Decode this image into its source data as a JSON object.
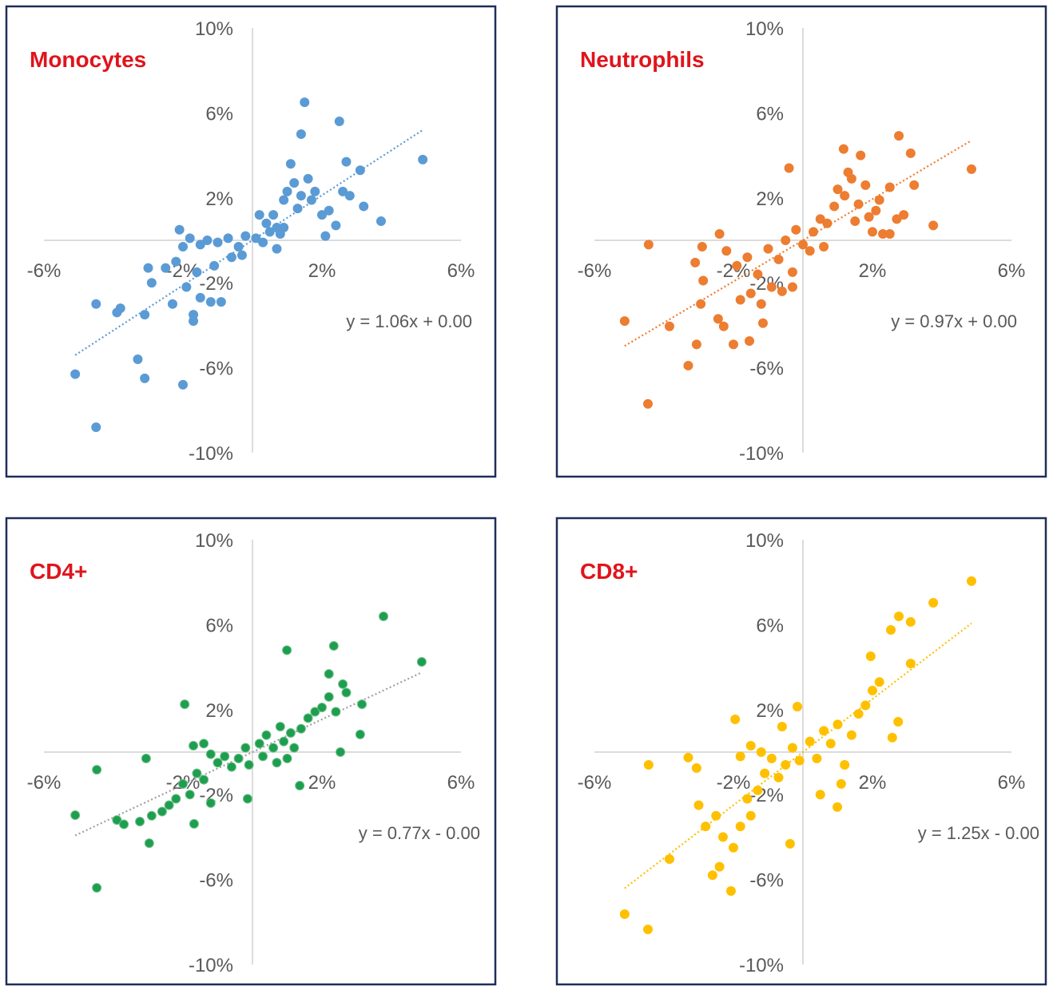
{
  "chart_data": [
    {
      "type": "scatter",
      "title": "Monocytes",
      "color": "#5b9bd5",
      "edge": "#5b9bd5",
      "xlim": [
        -6,
        6
      ],
      "ylim": [
        -10,
        10
      ],
      "xticks": [
        {
          "value": -6,
          "label": "-6%"
        },
        {
          "value": -2,
          "label": "-2%"
        },
        {
          "value": 2,
          "label": "2%"
        },
        {
          "value": 6,
          "label": "6%"
        }
      ],
      "yticks": [
        {
          "value": 10,
          "label": "10%"
        },
        {
          "value": 6,
          "label": "6%"
        },
        {
          "value": 2,
          "label": "2%"
        },
        {
          "value": -2,
          "label": "-2%"
        },
        {
          "value": -6,
          "label": "-6%"
        },
        {
          "value": -10,
          "label": "-10%"
        }
      ],
      "x": [
        4.9,
        1.5,
        2.5,
        1.4,
        2.7,
        3.1,
        3.7,
        3.2,
        -4.5,
        -5.1,
        -4.5,
        -3.3,
        -3.1,
        -2.0,
        -3.9,
        -3.8,
        -3.1,
        -2.9,
        -3.0,
        -2.3,
        -1.7,
        -1.7,
        -1.5,
        -1.2,
        -0.9,
        -2.1,
        -2.5,
        -2.0,
        -1.8,
        -1.5,
        -1.3,
        -1.0,
        -0.7,
        -0.4,
        -0.3,
        -0.2,
        0.1,
        -2.2,
        -1.6,
        -1.1,
        -0.6,
        -1.9,
        0.6,
        0.7,
        0.8,
        0.9,
        1.0,
        1.1,
        1.2,
        1.4,
        1.6,
        1.7,
        2.0,
        2.2,
        2.4,
        2.1,
        1.8,
        2.6,
        2.8,
        0.2,
        0.4,
        0.5,
        0.7,
        0.9,
        1.3,
        0.3
      ],
      "values": [
        3.8,
        6.5,
        5.6,
        5.0,
        3.7,
        3.3,
        0.9,
        1.6,
        -3.0,
        -6.3,
        -8.8,
        -5.6,
        -6.5,
        -6.8,
        -3.4,
        -3.2,
        -3.5,
        -2.0,
        -1.3,
        -3.0,
        -3.8,
        -3.5,
        -2.7,
        -2.9,
        -2.9,
        0.5,
        -1.3,
        -0.3,
        0.1,
        -0.2,
        0.0,
        -0.1,
        0.1,
        -0.3,
        -0.7,
        0.2,
        0.1,
        -1.0,
        -1.5,
        -1.2,
        -0.8,
        -2.2,
        1.2,
        0.6,
        0.3,
        1.9,
        2.3,
        3.6,
        2.7,
        2.1,
        2.9,
        1.9,
        1.2,
        1.4,
        0.7,
        0.2,
        2.3,
        2.3,
        2.1,
        1.2,
        0.8,
        0.4,
        -0.4,
        0.6,
        1.5,
        -0.1
      ],
      "trendline": {
        "label": "y = 1.06x + 0.00",
        "slope": 1.06,
        "intercept": 0.0,
        "color": "#5b9bd5"
      }
    },
    {
      "type": "scatter",
      "title": "Neutrophils",
      "color": "#ed7d31",
      "edge": "#ed7d31",
      "xlim": [
        -6,
        6
      ],
      "ylim": [
        -10,
        10
      ],
      "xticks": [
        {
          "value": -6,
          "label": "-6%"
        },
        {
          "value": -2,
          "label": "-2%"
        },
        {
          "value": 2,
          "label": "2%"
        },
        {
          "value": 6,
          "label": "6%"
        }
      ],
      "yticks": [
        {
          "value": 10,
          "label": "10%"
        },
        {
          "value": 6,
          "label": "6%"
        },
        {
          "value": 2,
          "label": "2%"
        },
        {
          "value": -2,
          "label": "-2%"
        },
        {
          "value": -6,
          "label": "-6%"
        },
        {
          "value": -10,
          "label": "-10%"
        }
      ],
      "x": [
        4.85,
        2.76,
        3.1,
        1.17,
        1.66,
        -0.4,
        3.75,
        -5.13,
        -4.44,
        -4.46,
        -3.3,
        -3.06,
        -3.84,
        -2.0,
        -1.54,
        -2.44,
        -2.28,
        -1.15,
        -2.94,
        -2.87,
        -3.1,
        -2.9,
        -2.4,
        -2.2,
        -1.9,
        -1.6,
        -1.3,
        -1.0,
        -0.7,
        -0.5,
        -0.3,
        -0.2,
        0.0,
        -1.5,
        -1.2,
        -0.9,
        -1.8,
        -0.3,
        -0.6,
        0.3,
        0.5,
        0.7,
        0.9,
        1.0,
        1.2,
        1.3,
        1.4,
        1.6,
        1.8,
        1.9,
        2.1,
        2.3,
        2.5,
        2.7,
        2.9,
        2.5,
        2.2,
        1.5,
        0.6,
        0.2,
        3.2,
        2.0
      ],
      "values": [
        3.35,
        4.92,
        4.1,
        4.3,
        4.0,
        3.4,
        0.7,
        -3.8,
        -0.2,
        -7.7,
        -5.9,
        -4.9,
        -4.05,
        -4.9,
        -4.74,
        -3.7,
        -4.05,
        -3.9,
        -3.0,
        -1.9,
        -1.05,
        -0.3,
        0.3,
        -0.5,
        -1.2,
        -0.8,
        -1.6,
        -0.4,
        -0.9,
        0.0,
        -1.5,
        0.5,
        -0.2,
        -2.5,
        -3.0,
        -2.2,
        -2.8,
        -2.2,
        -2.4,
        0.4,
        1.0,
        0.8,
        1.6,
        2.4,
        2.1,
        3.2,
        2.9,
        1.7,
        2.6,
        1.1,
        1.4,
        0.3,
        2.5,
        1.0,
        1.2,
        0.3,
        1.9,
        0.9,
        -0.3,
        -0.5,
        2.6,
        0.4
      ],
      "trendline": {
        "label": "y = 0.97x + 0.00",
        "slope": 0.97,
        "intercept": 0.0,
        "color": "#ed7d31"
      }
    },
    {
      "type": "scatter",
      "title": "CD4+",
      "color": "#1e9e4f",
      "edge": "#6fbf8a",
      "xlim": [
        -6,
        6
      ],
      "ylim": [
        -10,
        10
      ],
      "xticks": [
        {
          "value": -6,
          "label": "-6%"
        },
        {
          "value": -2,
          "label": "-2%"
        },
        {
          "value": 2,
          "label": "2%"
        },
        {
          "value": 6,
          "label": "6%"
        }
      ],
      "yticks": [
        {
          "value": 10,
          "label": "10%"
        },
        {
          "value": 6,
          "label": "6%"
        },
        {
          "value": 2,
          "label": "2%"
        },
        {
          "value": -2,
          "label": "-2%"
        },
        {
          "value": -6,
          "label": "-6%"
        },
        {
          "value": -10,
          "label": "-10%"
        }
      ],
      "x": [
        4.87,
        3.77,
        2.34,
        0.99,
        2.2,
        3.15,
        3.1,
        2.53,
        -5.1,
        -4.48,
        -4.48,
        -2.97,
        -3.06,
        -1.95,
        -3.9,
        -3.7,
        -3.24,
        -1.68,
        1.36,
        -0.14,
        -2.9,
        -2.6,
        -2.4,
        -2.2,
        -2.0,
        -1.8,
        -1.6,
        -1.4,
        -1.2,
        -1.0,
        -0.8,
        -0.6,
        -0.4,
        -0.2,
        -1.7,
        -1.4,
        -1.2,
        0.2,
        0.4,
        0.6,
        0.7,
        0.8,
        0.9,
        1.0,
        1.1,
        1.2,
        1.4,
        1.6,
        1.8,
        2.0,
        2.2,
        2.4,
        2.6,
        2.7,
        0.3,
        -0.1
      ],
      "values": [
        4.25,
        6.39,
        5.0,
        4.8,
        3.68,
        2.25,
        0.83,
        0.0,
        -2.97,
        -0.83,
        -6.39,
        -4.29,
        -0.3,
        2.25,
        -3.2,
        -3.4,
        -3.27,
        -3.38,
        -1.58,
        -2.2,
        -3.0,
        -2.8,
        -2.5,
        -2.2,
        -1.5,
        -2.0,
        -1.0,
        -1.3,
        -2.4,
        -0.5,
        -0.2,
        -0.7,
        -0.3,
        0.2,
        0.3,
        0.4,
        -0.1,
        0.4,
        0.8,
        0.2,
        -0.5,
        1.2,
        0.5,
        -0.3,
        0.9,
        0.2,
        1.1,
        1.6,
        1.9,
        2.1,
        2.6,
        1.9,
        3.2,
        2.8,
        -0.2,
        -0.6
      ],
      "trendline": {
        "label": "y = 0.77x - 0.00",
        "slope": 0.77,
        "intercept": 0.0,
        "color": "#a0a0a0"
      }
    },
    {
      "type": "scatter",
      "title": "CD8+",
      "color": "#ffc000",
      "edge": "#ffc000",
      "xlim": [
        -6,
        6
      ],
      "ylim": [
        -10,
        10
      ],
      "xticks": [
        {
          "value": -6,
          "label": "-6%"
        },
        {
          "value": -2,
          "label": "-2%"
        },
        {
          "value": 2,
          "label": "2%"
        },
        {
          "value": 6,
          "label": "6%"
        }
      ],
      "yticks": [
        {
          "value": 10,
          "label": "10%"
        },
        {
          "value": 6,
          "label": "6%"
        },
        {
          "value": 2,
          "label": "2%"
        },
        {
          "value": -2,
          "label": "-2%"
        },
        {
          "value": -6,
          "label": "-6%"
        },
        {
          "value": -10,
          "label": "-10%"
        }
      ],
      "x": [
        4.85,
        3.75,
        2.76,
        3.1,
        2.53,
        3.1,
        1.95,
        -5.13,
        -4.46,
        -4.44,
        -2.07,
        -3.84,
        -3.3,
        -3.06,
        -0.37,
        0.99,
        -1.95,
        -0.16,
        2.74,
        2.57,
        -3.0,
        -2.8,
        -2.5,
        -2.3,
        -2.0,
        -1.8,
        -1.6,
        -1.5,
        -1.3,
        -1.1,
        -0.9,
        -0.7,
        -0.5,
        -0.3,
        -0.1,
        -1.8,
        -1.5,
        -1.2,
        -2.4,
        -2.6,
        0.2,
        0.4,
        0.6,
        0.8,
        1.0,
        1.2,
        1.4,
        1.6,
        1.8,
        2.0,
        2.2,
        1.1,
        0.5,
        -0.6
      ],
      "values": [
        8.05,
        7.03,
        6.39,
        6.13,
        5.75,
        4.17,
        4.51,
        -7.63,
        -8.35,
        -0.6,
        -6.54,
        -5.04,
        -0.26,
        -0.75,
        -4.32,
        -2.59,
        1.54,
        2.14,
        1.43,
        0.68,
        -2.5,
        -3.5,
        -3.0,
        -4.0,
        -4.5,
        -3.5,
        -2.2,
        -3.0,
        -1.8,
        -1.0,
        -0.3,
        -1.2,
        -0.6,
        0.2,
        -0.4,
        -0.2,
        0.3,
        0.0,
        -5.4,
        -5.8,
        0.5,
        -0.3,
        1.0,
        0.4,
        1.3,
        -0.6,
        0.8,
        1.8,
        2.2,
        2.9,
        3.3,
        -1.5,
        -2.0,
        1.2
      ],
      "trendline": {
        "label": "y = 1.25x - 0.00",
        "slope": 1.25,
        "intercept": 0.0,
        "color": "#ffc000"
      }
    }
  ]
}
